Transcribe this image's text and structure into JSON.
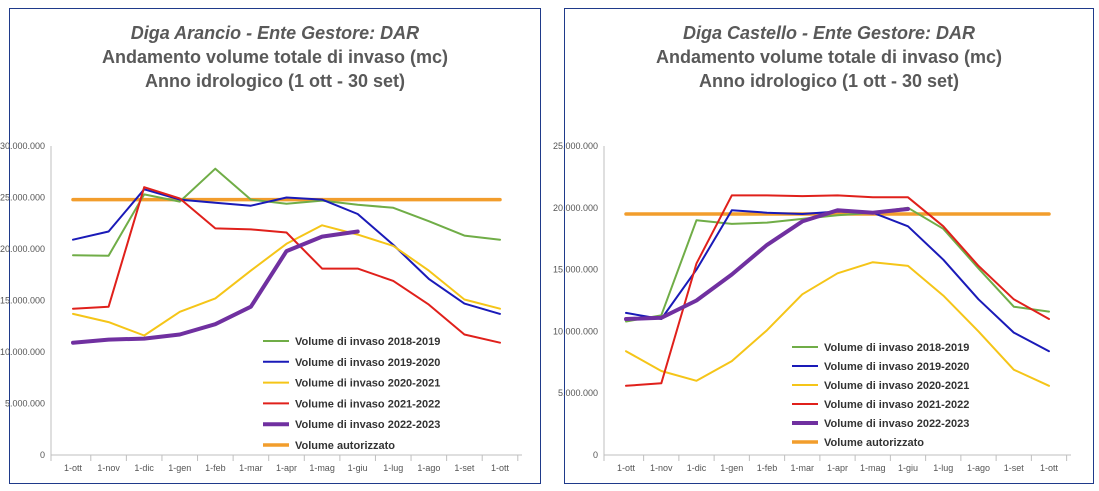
{
  "colors": {
    "s2018": "#70ad47",
    "s2019": "#1a1ab8",
    "s2020": "#f5c518",
    "s2021": "#e0201b",
    "s2022": "#7030a0",
    "aut": "#f29d2c",
    "border": "#1f3a8a"
  },
  "chart_data": [
    {
      "type": "line",
      "title": [
        "Diga Arancio - Ente Gestore: DAR",
        "Andamento volume totale di invaso (mc)",
        "Anno idrologico (1 ott - 30 set)"
      ],
      "categories": [
        "1-ott",
        "1-nov",
        "1-dic",
        "1-gen",
        "1-feb",
        "1-mar",
        "1-apr",
        "1-mag",
        "1-giu",
        "1-lug",
        "1-ago",
        "1-set",
        "1-ott"
      ],
      "ylim": [
        0,
        30000000
      ],
      "yticks": [
        "0",
        "5.000.000",
        "10.000.000",
        "15.000.000",
        "20.000.000",
        "25.000.000",
        "30.000.000"
      ],
      "legend_position": "bottom-right",
      "series": [
        {
          "name": "Volume di invaso 2018-2019",
          "color": "s2018",
          "width": 2,
          "values": [
            19400000,
            19350000,
            25300000,
            24600000,
            27800000,
            24800000,
            24400000,
            24700000,
            24300000,
            24000000,
            22700000,
            21300000,
            20900000
          ]
        },
        {
          "name": "Volume di invaso 2019-2020",
          "color": "s2019",
          "width": 2,
          "values": [
            20900000,
            21700000,
            25800000,
            24800000,
            24500000,
            24200000,
            25000000,
            24800000,
            23400000,
            20400000,
            17100000,
            14700000,
            13700000
          ]
        },
        {
          "name": "Volume di invaso 2020-2021",
          "color": "s2020",
          "width": 2,
          "values": [
            13700000,
            12900000,
            11600000,
            13900000,
            15200000,
            17900000,
            20500000,
            22300000,
            21400000,
            20300000,
            17900000,
            15100000,
            14200000
          ]
        },
        {
          "name": "Volume di invaso 2021-2022",
          "color": "s2021",
          "width": 2,
          "values": [
            14200000,
            14400000,
            26000000,
            24900000,
            22000000,
            21900000,
            21600000,
            18100000,
            18100000,
            16900000,
            14600000,
            11700000,
            10900000
          ]
        },
        {
          "name": "Volume di invaso 2022-2023",
          "color": "s2022",
          "width": 4,
          "values": [
            10900000,
            11200000,
            11300000,
            11700000,
            12700000,
            14400000,
            19800000,
            21200000,
            21700000,
            null,
            null,
            null,
            null
          ]
        },
        {
          "name": "Volume autorizzato",
          "color": "aut",
          "width": 3.5,
          "values": [
            24800000,
            24800000,
            24800000,
            24800000,
            24800000,
            24800000,
            24800000,
            24800000,
            24800000,
            24800000,
            24800000,
            24800000,
            24800000
          ]
        }
      ]
    },
    {
      "type": "line",
      "title": [
        "Diga Castello - Ente Gestore: DAR",
        "Andamento volume totale di invaso (mc)",
        "Anno idrologico (1 ott - 30 set)"
      ],
      "categories": [
        "1-ott",
        "1-nov",
        "1-dic",
        "1-gen",
        "1-feb",
        "1-mar",
        "1-apr",
        "1-mag",
        "1-giu",
        "1-lug",
        "1-ago",
        "1-set",
        "1-ott"
      ],
      "ylim": [
        0,
        25000000
      ],
      "yticks": [
        "0",
        "5.000.000",
        "10.000.000",
        "15.000.000",
        "20.000.000",
        "25.000.000"
      ],
      "legend_position": "bottom-right",
      "series": [
        {
          "name": "Volume di invaso 2018-2019",
          "color": "s2018",
          "width": 2,
          "values": [
            10800000,
            11300000,
            19000000,
            18700000,
            18800000,
            19100000,
            19400000,
            19600000,
            20000000,
            18300000,
            15100000,
            12000000,
            11600000
          ]
        },
        {
          "name": "Volume di invaso 2019-2020",
          "color": "s2019",
          "width": 2,
          "values": [
            11500000,
            11000000,
            15000000,
            19800000,
            19600000,
            19500000,
            19700000,
            19600000,
            18500000,
            15800000,
            12600000,
            9900000,
            8400000
          ]
        },
        {
          "name": "Volume di invaso 2020-2021",
          "color": "s2020",
          "width": 2,
          "values": [
            8400000,
            6800000,
            6000000,
            7600000,
            10100000,
            13000000,
            14700000,
            15600000,
            15300000,
            12900000,
            10000000,
            6900000,
            5600000
          ]
        },
        {
          "name": "Volume di invaso 2021-2022",
          "color": "s2021",
          "width": 2,
          "values": [
            5600000,
            5800000,
            15500000,
            21000000,
            21000000,
            20950000,
            21000000,
            20850000,
            20850000,
            18500000,
            15300000,
            12600000,
            11000000
          ]
        },
        {
          "name": "Volume di invaso 2022-2023",
          "color": "s2022",
          "width": 4,
          "values": [
            11000000,
            11100000,
            12500000,
            14600000,
            17000000,
            18900000,
            19800000,
            19600000,
            19900000,
            null,
            null,
            null,
            null
          ]
        },
        {
          "name": "Volume autorizzato",
          "color": "aut",
          "width": 3.5,
          "values": [
            19500000,
            19500000,
            19500000,
            19500000,
            19500000,
            19500000,
            19500000,
            19500000,
            19500000,
            19500000,
            19500000,
            19500000,
            19500000
          ]
        }
      ]
    }
  ]
}
